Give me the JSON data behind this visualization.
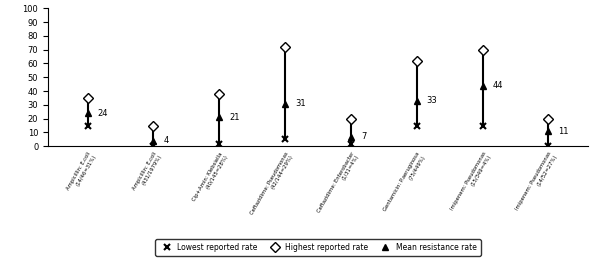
{
  "lowest": [
    15,
    0,
    2,
    5,
    2,
    15,
    15,
    0
  ],
  "highest": [
    35,
    15,
    38,
    72,
    20,
    62,
    70,
    20
  ],
  "mean": [
    24,
    4,
    21,
    31,
    7,
    33,
    44,
    11
  ],
  "mean_labels": [
    "24",
    "4",
    "21",
    "31",
    "7",
    "33",
    "44",
    "11"
  ],
  "x_tick_labels": [
    "Ampicillin: E.coli\n(14/46=31%)",
    "Ampicillin: E.coli\n(431/1979%)",
    "Cip+Amin: Klebsiella\n(40/145=28%)",
    "Ceftazidime: Pseudomonas\n(42/144=29%)",
    "Ceftazidime: Enterobacter\n(1/31=4%)",
    "Gentamicin: P.aeruginosa\n(75/449%)",
    "Imipenem: Pseudomonas\n(15/349=4%)",
    "Imipenem: Pseudomonas\n(14/52=27%)"
  ],
  "legend_labels": [
    "Lowest reported rate",
    "Highest reported rate",
    "Mean resistance rate"
  ],
  "line_color": "black",
  "marker_color": "black",
  "bg_color": "white",
  "ylim": [
    0,
    100
  ],
  "yticks": [
    0,
    10,
    20,
    30,
    40,
    50,
    60,
    70,
    80,
    90,
    100
  ]
}
